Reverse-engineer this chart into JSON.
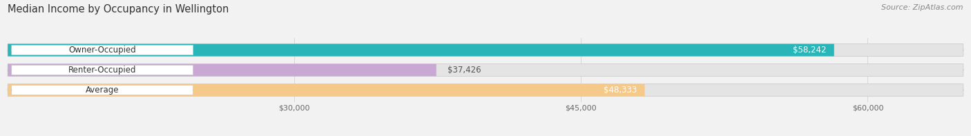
{
  "title": "Median Income by Occupancy in Wellington",
  "source": "Source: ZipAtlas.com",
  "categories": [
    "Owner-Occupied",
    "Renter-Occupied",
    "Average"
  ],
  "values": [
    58242,
    37426,
    48333
  ],
  "bar_colors": [
    "#2ab5b8",
    "#c9a8d4",
    "#f5c98a"
  ],
  "value_labels": [
    "$58,242",
    "$37,426",
    "$48,333"
  ],
  "value_inside": [
    true,
    false,
    true
  ],
  "xlim": [
    15000,
    65000
  ],
  "xticks": [
    30000,
    45000,
    60000
  ],
  "xtick_labels": [
    "$30,000",
    "$45,000",
    "$60,000"
  ],
  "background_color": "#f2f2f2",
  "bar_background_color": "#e4e4e4",
  "title_fontsize": 10.5,
  "source_fontsize": 8,
  "label_fontsize": 8.5,
  "value_fontsize": 8.5,
  "bar_height": 0.62,
  "bar_spacing": 1.0,
  "pill_color": "white",
  "pill_edge_color": "#dddddd"
}
